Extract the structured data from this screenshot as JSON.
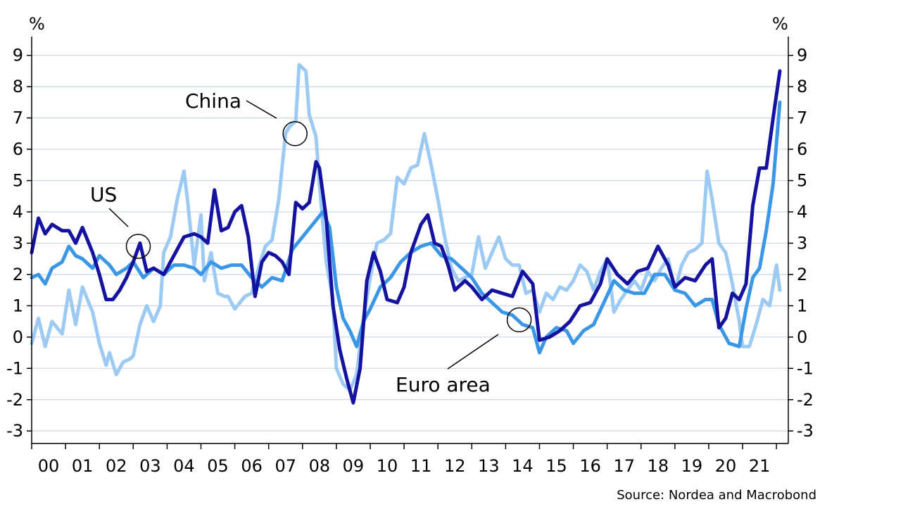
{
  "chart_data": {
    "type": "line",
    "left_unit": "%",
    "right_unit": "%",
    "source": "Source: Nordea and Macrobond",
    "grid": true,
    "ylim": [
      -3.4,
      9.6
    ],
    "y_ticks": [
      9,
      8,
      7,
      6,
      5,
      4,
      3,
      2,
      1,
      0,
      -1,
      -2,
      -3
    ],
    "y_tick_labels": [
      "9",
      "8",
      "7",
      "6",
      "5",
      "4",
      "3",
      "2",
      "1",
      "0",
      "-1",
      "-2",
      "-3"
    ],
    "xlim": [
      2000.0,
      2022.35
    ],
    "x_ticks": [
      {
        "label": "00",
        "year": 2000
      },
      {
        "label": "01",
        "year": 2001
      },
      {
        "label": "02",
        "year": 2002
      },
      {
        "label": "03",
        "year": 2003
      },
      {
        "label": "04",
        "year": 2004
      },
      {
        "label": "05",
        "year": 2005
      },
      {
        "label": "06",
        "year": 2006
      },
      {
        "label": "07",
        "year": 2007
      },
      {
        "label": "08",
        "year": 2008
      },
      {
        "label": "09",
        "year": 2009
      },
      {
        "label": "10",
        "year": 2010
      },
      {
        "label": "11",
        "year": 2011
      },
      {
        "label": "12",
        "year": 2012
      },
      {
        "label": "13",
        "year": 2013
      },
      {
        "label": "14",
        "year": 2014
      },
      {
        "label": "15",
        "year": 2015
      },
      {
        "label": "16",
        "year": 2016
      },
      {
        "label": "17",
        "year": 2017
      },
      {
        "label": "18",
        "year": 2018
      },
      {
        "label": "19",
        "year": 2019
      },
      {
        "label": "20",
        "year": 2020
      },
      {
        "label": "21",
        "year": 2021
      }
    ],
    "series": [
      {
        "name": "China",
        "color": "#9ccaf2",
        "x": [
          2000.0,
          2000.2,
          2000.4,
          2000.6,
          2000.9,
          2001.1,
          2001.3,
          2001.5,
          2001.8,
          2002.0,
          2002.2,
          2002.3,
          2002.5,
          2002.7,
          2002.9,
          2003.0,
          2003.2,
          2003.4,
          2003.6,
          2003.8,
          2003.9,
          2004.1,
          2004.3,
          2004.5,
          2004.6,
          2004.8,
          2005.0,
          2005.1,
          2005.3,
          2005.5,
          2005.7,
          2005.8,
          2006.0,
          2006.3,
          2006.5,
          2006.7,
          2006.9,
          2007.1,
          2007.3,
          2007.5,
          2007.6,
          2007.8,
          2007.9,
          2008.1,
          2008.2,
          2008.4,
          2008.5,
          2008.7,
          2008.9,
          2009.0,
          2009.2,
          2009.4,
          2009.6,
          2009.8,
          2010.0,
          2010.2,
          2010.4,
          2010.6,
          2010.8,
          2011.0,
          2011.2,
          2011.4,
          2011.6,
          2011.8,
          2012.0,
          2012.2,
          2012.4,
          2012.6,
          2012.8,
          2013.0,
          2013.2,
          2013.4,
          2013.6,
          2013.8,
          2014.0,
          2014.2,
          2014.4,
          2014.6,
          2014.8,
          2015.0,
          2015.2,
          2015.4,
          2015.6,
          2015.8,
          2016.0,
          2016.2,
          2016.4,
          2016.6,
          2016.8,
          2017.0,
          2017.2,
          2017.4,
          2017.6,
          2017.8,
          2018.0,
          2018.2,
          2018.4,
          2018.6,
          2018.8,
          2019.0,
          2019.2,
          2019.4,
          2019.6,
          2019.8,
          2019.95,
          2020.1,
          2020.3,
          2020.5,
          2020.7,
          2020.9,
          2021.0,
          2021.2,
          2021.4,
          2021.6,
          2021.8,
          2022.0,
          2022.1
        ],
        "values": [
          -0.2,
          0.6,
          -0.3,
          0.5,
          0.1,
          1.5,
          0.4,
          1.6,
          0.8,
          -0.2,
          -0.9,
          -0.5,
          -1.2,
          -0.8,
          -0.7,
          -0.6,
          0.4,
          1.0,
          0.5,
          1.0,
          2.7,
          3.2,
          4.4,
          5.3,
          4.4,
          2.3,
          3.9,
          1.8,
          2.7,
          1.4,
          1.3,
          1.3,
          0.9,
          1.3,
          1.4,
          2.2,
          2.9,
          3.1,
          4.4,
          6.5,
          6.7,
          6.9,
          8.7,
          8.5,
          7.1,
          6.4,
          4.9,
          2.4,
          1.2,
          -1.0,
          -1.5,
          -1.7,
          -1.2,
          0.6,
          1.9,
          3.0,
          3.1,
          3.3,
          5.1,
          4.9,
          5.4,
          5.5,
          6.5,
          5.5,
          4.4,
          3.2,
          2.2,
          1.8,
          1.9,
          2.0,
          3.2,
          2.2,
          2.7,
          3.2,
          2.5,
          2.3,
          2.3,
          1.4,
          1.5,
          0.8,
          1.4,
          1.2,
          1.6,
          1.5,
          1.8,
          2.3,
          2.1,
          1.5,
          2.1,
          2.5,
          0.8,
          1.2,
          1.5,
          1.8,
          1.5,
          2.1,
          1.8,
          2.2,
          2.5,
          1.5,
          2.3,
          2.7,
          2.8,
          3.0,
          5.3,
          4.4,
          3.0,
          2.7,
          1.7,
          0.5,
          -0.3,
          -0.3,
          0.4,
          1.2,
          1.0,
          2.3,
          1.5
        ],
        "label": "China",
        "marker_point": [
          2007.78,
          6.5
        ]
      },
      {
        "name": "Euro area",
        "color": "#3b97e6",
        "x": [
          2000.0,
          2000.2,
          2000.4,
          2000.6,
          2000.9,
          2001.1,
          2001.3,
          2001.5,
          2001.8,
          2002.0,
          2002.3,
          2002.5,
          2002.8,
          2003.0,
          2003.3,
          2003.6,
          2003.9,
          2004.2,
          2004.5,
          2004.8,
          2005.0,
          2005.3,
          2005.6,
          2005.9,
          2006.2,
          2006.5,
          2006.8,
          2007.1,
          2007.4,
          2007.7,
          2008.0,
          2008.3,
          2008.6,
          2008.8,
          2009.0,
          2009.2,
          2009.4,
          2009.6,
          2009.8,
          2010.0,
          2010.3,
          2010.6,
          2010.9,
          2011.2,
          2011.5,
          2011.8,
          2012.1,
          2012.4,
          2012.7,
          2013.0,
          2013.3,
          2013.6,
          2013.9,
          2014.2,
          2014.5,
          2014.8,
          2015.0,
          2015.2,
          2015.5,
          2015.8,
          2016.0,
          2016.3,
          2016.6,
          2016.9,
          2017.2,
          2017.5,
          2017.8,
          2018.1,
          2018.4,
          2018.7,
          2019.0,
          2019.3,
          2019.6,
          2019.9,
          2020.1,
          2020.3,
          2020.6,
          2020.9,
          2021.1,
          2021.3,
          2021.5,
          2021.7,
          2021.9,
          2022.1
        ],
        "values": [
          1.9,
          2.0,
          1.7,
          2.2,
          2.4,
          2.9,
          2.6,
          2.5,
          2.2,
          2.6,
          2.3,
          2.0,
          2.2,
          2.4,
          1.9,
          2.2,
          2.0,
          2.3,
          2.3,
          2.2,
          2.0,
          2.4,
          2.2,
          2.3,
          2.3,
          1.9,
          1.6,
          1.9,
          1.8,
          2.8,
          3.2,
          3.6,
          4.0,
          3.5,
          1.6,
          0.6,
          0.2,
          -0.3,
          0.5,
          0.9,
          1.6,
          1.9,
          2.4,
          2.7,
          2.9,
          3.0,
          2.6,
          2.5,
          2.2,
          1.9,
          1.4,
          1.1,
          0.8,
          0.7,
          0.4,
          0.3,
          -0.5,
          0.0,
          0.3,
          0.2,
          -0.2,
          0.2,
          0.4,
          1.1,
          1.8,
          1.5,
          1.4,
          1.4,
          2.0,
          2.0,
          1.5,
          1.4,
          1.0,
          1.2,
          1.2,
          0.4,
          -0.2,
          -0.3,
          0.9,
          1.9,
          2.2,
          3.4,
          4.9,
          7.5
        ],
        "label": "Euro area",
        "marker_point": [
          2014.4,
          0.55
        ]
      },
      {
        "name": "US",
        "color": "#1512a0",
        "x": [
          2000.0,
          2000.2,
          2000.4,
          2000.6,
          2000.9,
          2001.1,
          2001.3,
          2001.5,
          2001.8,
          2002.0,
          2002.2,
          2002.4,
          2002.6,
          2002.8,
          2003.0,
          2003.2,
          2003.4,
          2003.6,
          2003.9,
          2004.2,
          2004.5,
          2004.8,
          2005.0,
          2005.2,
          2005.4,
          2005.6,
          2005.8,
          2006.0,
          2006.2,
          2006.4,
          2006.6,
          2006.8,
          2007.0,
          2007.2,
          2007.4,
          2007.6,
          2007.8,
          2008.0,
          2008.2,
          2008.4,
          2008.5,
          2008.7,
          2008.9,
          2009.1,
          2009.3,
          2009.5,
          2009.7,
          2009.9,
          2010.1,
          2010.3,
          2010.5,
          2010.8,
          2011.0,
          2011.2,
          2011.5,
          2011.7,
          2011.9,
          2012.1,
          2012.3,
          2012.5,
          2012.8,
          2013.0,
          2013.3,
          2013.6,
          2013.9,
          2014.2,
          2014.5,
          2014.8,
          2015.0,
          2015.3,
          2015.6,
          2015.9,
          2016.2,
          2016.5,
          2016.8,
          2017.0,
          2017.3,
          2017.6,
          2017.9,
          2018.2,
          2018.5,
          2018.8,
          2019.0,
          2019.3,
          2019.6,
          2019.9,
          2020.1,
          2020.3,
          2020.5,
          2020.7,
          2020.9,
          2021.1,
          2021.3,
          2021.5,
          2021.7,
          2021.9,
          2022.1
        ],
        "values": [
          2.7,
          3.8,
          3.3,
          3.6,
          3.4,
          3.4,
          3.0,
          3.5,
          2.7,
          2.0,
          1.2,
          1.2,
          1.5,
          1.9,
          2.4,
          3.0,
          2.1,
          2.2,
          2.0,
          2.6,
          3.2,
          3.3,
          3.2,
          3.0,
          4.7,
          3.4,
          3.5,
          4.0,
          4.2,
          3.2,
          1.3,
          2.4,
          2.7,
          2.6,
          2.4,
          2.0,
          4.3,
          4.1,
          4.3,
          5.6,
          5.4,
          3.8,
          1.0,
          -0.4,
          -1.3,
          -2.1,
          -1.0,
          1.8,
          2.7,
          2.1,
          1.2,
          1.1,
          1.6,
          2.7,
          3.6,
          3.9,
          3.0,
          2.9,
          2.3,
          1.5,
          1.8,
          1.6,
          1.2,
          1.5,
          1.4,
          1.3,
          2.1,
          1.7,
          -0.1,
          0.0,
          0.2,
          0.5,
          1.0,
          1.1,
          1.7,
          2.5,
          2.0,
          1.7,
          2.1,
          2.2,
          2.9,
          2.3,
          1.6,
          1.9,
          1.8,
          2.3,
          2.5,
          0.3,
          0.6,
          1.4,
          1.2,
          1.7,
          4.2,
          5.4,
          5.4,
          7.0,
          8.5
        ],
        "label": "US",
        "marker_point": [
          2003.15,
          2.9
        ]
      }
    ]
  }
}
